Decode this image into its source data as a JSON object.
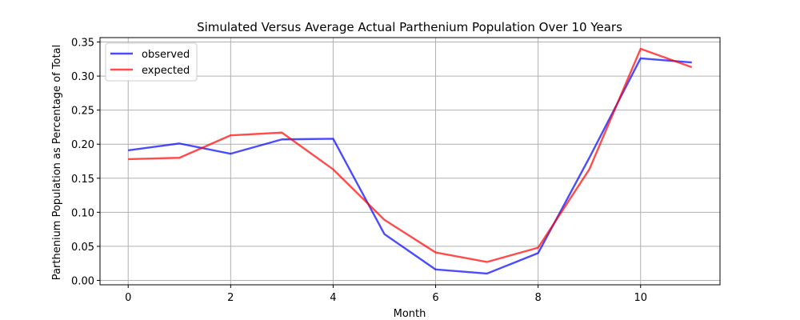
{
  "chart_data": {
    "type": "line",
    "title": "Simulated Versus Average Actual Parthenium Population Over 10 Years",
    "xlabel": "Month",
    "ylabel": "Parthenium Population as Percentage of Total",
    "x": [
      0,
      1,
      2,
      3,
      4,
      5,
      6,
      7,
      8,
      9,
      10,
      11
    ],
    "xlim": [
      -0.55,
      11.55
    ],
    "ylim": [
      -0.0065,
      0.3565
    ],
    "xticks": [
      0,
      2,
      4,
      6,
      8,
      10
    ],
    "yticks": [
      0.0,
      0.05,
      0.1,
      0.15,
      0.2,
      0.25,
      0.3,
      0.35
    ],
    "xtick_labels": [
      "0",
      "2",
      "4",
      "6",
      "8",
      "10"
    ],
    "ytick_labels": [
      "0.00",
      "0.05",
      "0.10",
      "0.15",
      "0.20",
      "0.25",
      "0.30",
      "0.35"
    ],
    "grid": true,
    "legend_position": "top-left",
    "series": [
      {
        "name": "observed",
        "color": "#0000ff",
        "values": [
          0.191,
          0.201,
          0.186,
          0.207,
          0.208,
          0.068,
          0.016,
          0.01,
          0.04,
          0.18,
          0.326,
          0.32
        ]
      },
      {
        "name": "expected",
        "color": "#ff0000",
        "values": [
          0.178,
          0.18,
          0.213,
          0.217,
          0.163,
          0.089,
          0.041,
          0.027,
          0.048,
          0.163,
          0.34,
          0.313
        ]
      }
    ]
  }
}
